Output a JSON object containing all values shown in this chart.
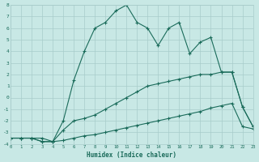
{
  "xlabel": "Humidex (Indice chaleur)",
  "bg_color": "#c8e8e5",
  "line_color": "#1a6b5a",
  "grid_color": "#a8ccca",
  "xlim": [
    0,
    23
  ],
  "ylim": [
    -4,
    8
  ],
  "yticks": [
    -4,
    -3,
    -2,
    -1,
    0,
    1,
    2,
    3,
    4,
    5,
    6,
    7,
    8
  ],
  "xticks": [
    0,
    1,
    2,
    3,
    4,
    5,
    6,
    7,
    8,
    9,
    10,
    11,
    12,
    13,
    14,
    15,
    16,
    17,
    18,
    19,
    20,
    21,
    22,
    23
  ],
  "line_bottom_x": [
    0,
    1,
    2,
    3,
    4,
    5,
    6,
    7,
    8,
    9,
    10,
    11,
    12,
    13,
    14,
    15,
    16,
    17,
    18,
    19,
    20,
    21,
    22,
    23
  ],
  "line_bottom_y": [
    -3.5,
    -3.5,
    -3.5,
    -3.8,
    -3.8,
    -3.7,
    -3.5,
    -3.3,
    -3.2,
    -3.0,
    -2.8,
    -2.6,
    -2.4,
    -2.2,
    -2.0,
    -1.8,
    -1.6,
    -1.4,
    -1.2,
    -0.9,
    -0.7,
    -0.5,
    -2.5,
    -2.7
  ],
  "line_mid_x": [
    0,
    1,
    2,
    3,
    4,
    5,
    6,
    7,
    8,
    9,
    10,
    11,
    12,
    13,
    14,
    15,
    16,
    17,
    18,
    19,
    20,
    21,
    22,
    23
  ],
  "line_mid_y": [
    -3.5,
    -3.5,
    -3.5,
    -3.5,
    -3.8,
    -2.8,
    -2.0,
    -1.8,
    -1.5,
    -1.0,
    -0.5,
    0.0,
    0.5,
    1.0,
    1.2,
    1.4,
    1.6,
    1.8,
    2.0,
    2.0,
    2.2,
    2.2,
    -0.8,
    -2.5
  ],
  "line_top_x": [
    0,
    1,
    2,
    3,
    4,
    5,
    6,
    7,
    8,
    9,
    10,
    11,
    12,
    13,
    14,
    15,
    16,
    17,
    18,
    19,
    20,
    21,
    22,
    23
  ],
  "line_top_y": [
    -3.5,
    -3.5,
    -3.5,
    -3.8,
    -3.8,
    -2.0,
    1.5,
    4.0,
    6.0,
    6.5,
    7.5,
    8.0,
    6.5,
    6.0,
    4.5,
    6.0,
    6.5,
    3.8,
    4.8,
    5.2,
    2.2,
    2.2,
    -0.8,
    -2.5
  ]
}
